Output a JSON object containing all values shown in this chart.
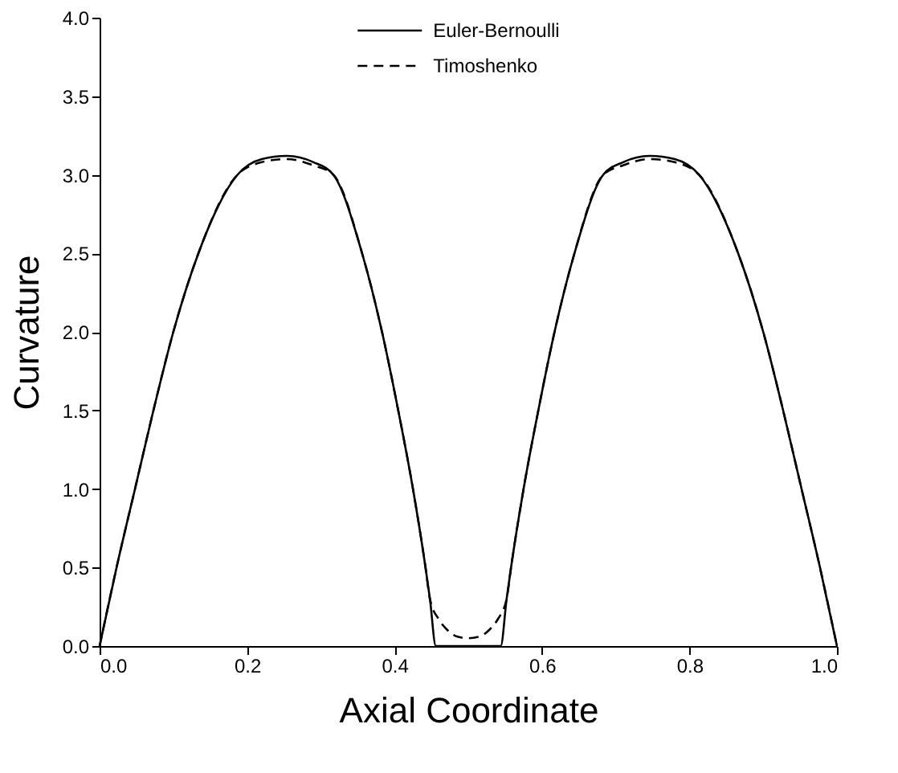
{
  "chart_data": {
    "type": "line",
    "xlabel": "Axial Coordinate",
    "ylabel": "Curvature",
    "xlim": [
      0,
      1
    ],
    "ylim": [
      0,
      4
    ],
    "xticks": [
      {
        "value": 0,
        "label": "0.0"
      },
      0.2,
      0.4,
      0.6,
      0.8,
      {
        "value": 1,
        "label": "1.0"
      }
    ],
    "yticks": [
      {
        "value": 0,
        "label": "0.0"
      },
      0.5,
      {
        "value": 1,
        "label": "1.0"
      },
      1.5,
      {
        "value": 2,
        "label": "2.0"
      },
      2.5,
      {
        "value": 3,
        "label": "3.0"
      },
      3.5,
      {
        "value": 4,
        "label": "4.0"
      }
    ],
    "grid": false,
    "legend": "top",
    "series": [
      {
        "name": "Euler-Bernoulli",
        "color": "#000000",
        "line_style": "solid",
        "x": [
          0,
          0.023,
          0.048,
          0.073,
          0.1,
          0.134,
          0.187,
          0.22,
          0.254,
          0.29,
          0.317,
          0.356,
          0.383,
          0.405,
          0.425,
          0.442,
          0.448,
          0.456,
          0.5,
          0.544,
          0.552,
          0.558,
          0.575,
          0.595,
          0.617,
          0.644,
          0.683,
          0.71,
          0.746,
          0.78,
          0.813,
          0.866,
          0.9,
          0.927,
          0.952,
          0.977,
          1
        ],
        "values": [
          0,
          0.5,
          1.0,
          1.5,
          2.0,
          2.5,
          3.0,
          3.1,
          3.12,
          3.08,
          3.0,
          2.5,
          2.0,
          1.5,
          1.0,
          0.5,
          0.3,
          0,
          0,
          0,
          0.3,
          0.5,
          1.0,
          1.5,
          2.0,
          2.5,
          3.0,
          3.08,
          3.12,
          3.1,
          3.0,
          2.5,
          2.0,
          1.5,
          1.0,
          0.5,
          0
        ]
      },
      {
        "name": "Timoshenko",
        "color": "#000000",
        "line_style": "dashed",
        "x": [
          0,
          0.023,
          0.048,
          0.073,
          0.1,
          0.134,
          0.187,
          0.22,
          0.254,
          0.29,
          0.317,
          0.356,
          0.383,
          0.405,
          0.425,
          0.442,
          0.448,
          0.46,
          0.47,
          0.485,
          0.5,
          0.515,
          0.53,
          0.54,
          0.552,
          0.558,
          0.575,
          0.595,
          0.617,
          0.644,
          0.683,
          0.71,
          0.746,
          0.78,
          0.813,
          0.866,
          0.9,
          0.927,
          0.952,
          0.977,
          1
        ],
        "values": [
          0,
          0.5,
          1.0,
          1.5,
          2.0,
          2.5,
          3.0,
          3.08,
          3.1,
          3.06,
          3.0,
          2.5,
          2.0,
          1.5,
          1.0,
          0.5,
          0.3,
          0.17,
          0.11,
          0.06,
          0.05,
          0.06,
          0.11,
          0.17,
          0.3,
          0.5,
          1.0,
          1.5,
          2.0,
          2.5,
          3.0,
          3.06,
          3.1,
          3.08,
          3.0,
          2.5,
          2.0,
          1.5,
          1.0,
          0.5,
          0
        ]
      }
    ]
  }
}
